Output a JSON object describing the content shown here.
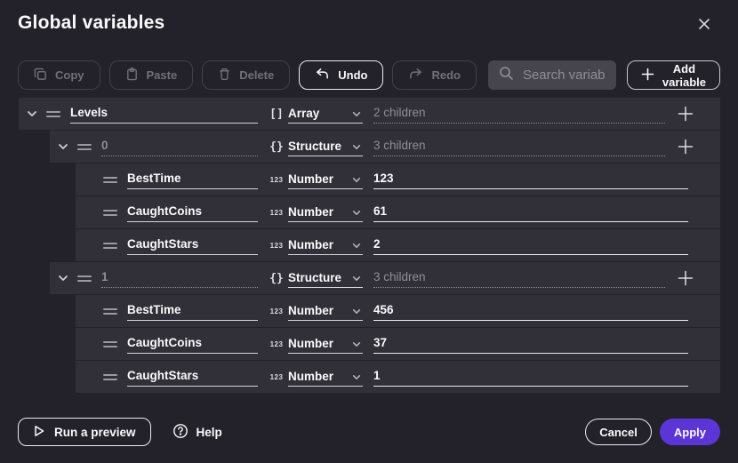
{
  "dialog": {
    "title": "Global variables"
  },
  "toolbar": {
    "copy_label": "Copy",
    "paste_label": "Paste",
    "delete_label": "Delete",
    "undo_label": "Undo",
    "redo_label": "Redo",
    "search_placeholder": "Search variables",
    "add_variable_label": "Add variable"
  },
  "variables": [
    {
      "name": "Levels",
      "name_filled": true,
      "indent": 0,
      "expandable": true,
      "type": "Array",
      "type_icon": "[]",
      "value": "2 children",
      "value_kind": "children",
      "can_add": true
    },
    {
      "name": "0",
      "name_filled": false,
      "indent": 1,
      "expandable": true,
      "type": "Structure",
      "type_icon": "{}",
      "value": "3 children",
      "value_kind": "children",
      "can_add": true
    },
    {
      "name": "BestTime",
      "name_filled": true,
      "indent": 2,
      "expandable": false,
      "type": "Number",
      "type_icon": "123",
      "value": "123",
      "value_kind": "value",
      "can_add": false
    },
    {
      "name": "CaughtCoins",
      "name_filled": true,
      "indent": 2,
      "expandable": false,
      "type": "Number",
      "type_icon": "123",
      "value": "61",
      "value_kind": "value",
      "can_add": false
    },
    {
      "name": "CaughtStars",
      "name_filled": true,
      "indent": 2,
      "expandable": false,
      "type": "Number",
      "type_icon": "123",
      "value": "2",
      "value_kind": "value",
      "can_add": false
    },
    {
      "name": "1",
      "name_filled": false,
      "indent": 1,
      "expandable": true,
      "type": "Structure",
      "type_icon": "{}",
      "value": "3 children",
      "value_kind": "children",
      "can_add": true
    },
    {
      "name": "BestTime",
      "name_filled": true,
      "indent": 2,
      "expandable": false,
      "type": "Number",
      "type_icon": "123",
      "value": "456",
      "value_kind": "value",
      "can_add": false
    },
    {
      "name": "CaughtCoins",
      "name_filled": true,
      "indent": 2,
      "expandable": false,
      "type": "Number",
      "type_icon": "123",
      "value": "37",
      "value_kind": "value",
      "can_add": false
    },
    {
      "name": "CaughtStars",
      "name_filled": true,
      "indent": 2,
      "expandable": false,
      "type": "Number",
      "type_icon": "123",
      "value": "1",
      "value_kind": "value",
      "can_add": false
    }
  ],
  "footer": {
    "run_preview_label": "Run a preview",
    "help_label": "Help",
    "cancel_label": "Cancel",
    "apply_label": "Apply"
  },
  "colors": {
    "dialog_bg": "#232129",
    "row_bg": "#312f38",
    "accent": "#5b35d5",
    "muted_text": "#8f8d98"
  }
}
